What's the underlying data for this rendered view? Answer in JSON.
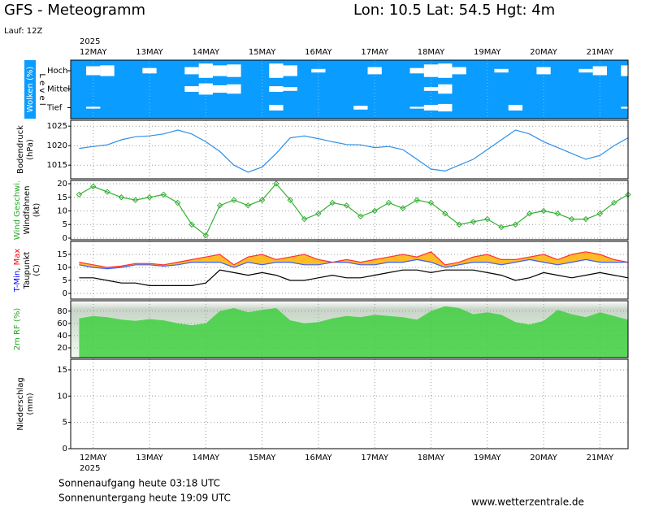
{
  "header": {
    "title": "GFS - Meteogramm",
    "location": "Lon: 10.5 Lat: 54.5 Hgt: 4m",
    "run": "Lauf: 12Z"
  },
  "time_axis": {
    "year": "2025",
    "xlim": [
      11.6,
      21.5
    ],
    "xticks": [
      {
        "value": 12,
        "label": "12MAY"
      },
      {
        "value": 13,
        "label": "13MAY"
      },
      {
        "value": 14,
        "label": "14MAY"
      },
      {
        "value": 15,
        "label": "15MAY"
      },
      {
        "value": 16,
        "label": "16MAY"
      },
      {
        "value": 17,
        "label": "17MAY"
      },
      {
        "value": 18,
        "label": "18MAY"
      },
      {
        "value": 19,
        "label": "19MAY"
      },
      {
        "value": 20,
        "label": "20MAY"
      },
      {
        "value": 21,
        "label": "21MAY"
      }
    ],
    "x": [
      11.75,
      12,
      12.25,
      12.5,
      12.75,
      13,
      13.25,
      13.5,
      13.75,
      14,
      14.25,
      14.5,
      14.75,
      15,
      15.25,
      15.5,
      15.75,
      16,
      16.25,
      16.5,
      16.75,
      17,
      17.25,
      17.5,
      17.75,
      18,
      18.25,
      18.5,
      18.75,
      19,
      19.25,
      19.5,
      19.75,
      20,
      20.25,
      20.5,
      20.75,
      21,
      21.25,
      21.5
    ]
  },
  "chart_data": [
    {
      "type": "cloud",
      "ylabel": [
        [
          {
            "text": "Wolken (%)",
            "color": "#ffffff"
          }
        ]
      ],
      "level_label": "L e v e l",
      "background": "#0a9cff",
      "series": [
        {
          "name": "Hoch",
          "color": "#ffffff",
          "values": [
            0,
            50,
            60,
            0,
            0,
            30,
            0,
            0,
            40,
            80,
            60,
            70,
            0,
            0,
            80,
            60,
            0,
            20,
            0,
            0,
            0,
            40,
            0,
            0,
            30,
            70,
            80,
            40,
            0,
            0,
            20,
            0,
            0,
            40,
            0,
            0,
            20,
            50,
            0,
            60
          ]
        },
        {
          "name": "Mittel",
          "color": "#ffffff",
          "values": [
            0,
            0,
            0,
            0,
            0,
            0,
            0,
            0,
            30,
            60,
            40,
            50,
            0,
            0,
            30,
            20,
            0,
            0,
            0,
            0,
            0,
            0,
            0,
            0,
            0,
            20,
            50,
            0,
            0,
            0,
            0,
            0,
            0,
            0,
            0,
            0,
            0,
            0,
            0,
            0
          ]
        },
        {
          "name": "Tief",
          "color": "#ffffff",
          "values": [
            0,
            10,
            0,
            0,
            0,
            0,
            0,
            0,
            0,
            0,
            0,
            0,
            0,
            0,
            30,
            0,
            0,
            0,
            0,
            0,
            20,
            0,
            0,
            0,
            10,
            30,
            40,
            0,
            0,
            0,
            0,
            30,
            0,
            0,
            0,
            0,
            0,
            0,
            0,
            10
          ]
        }
      ]
    },
    {
      "type": "line",
      "ylabel": [
        [
          {
            "text": "Bodendruck",
            "color": "#000000"
          }
        ],
        [
          {
            "text": "(hPa)",
            "color": "#000000"
          }
        ]
      ],
      "ylim": [
        1011.5,
        1026.5
      ],
      "yticks": [
        1015,
        1020,
        1025
      ],
      "series": [
        {
          "color": "#2f8fe8",
          "values": [
            1019.3,
            1019.8,
            1020.2,
            1021.5,
            1022.3,
            1022.5,
            1023,
            1024,
            1023,
            1021,
            1018.5,
            1015,
            1013.2,
            1014.5,
            1018,
            1022,
            1022.5,
            1021.8,
            1021,
            1020.3,
            1020.2,
            1019.5,
            1019.8,
            1019,
            1016.5,
            1014,
            1013.5,
            1015,
            1016.5,
            1019,
            1021.5,
            1024,
            1023,
            1021,
            1019.5,
            1018,
            1016.5,
            1017.5,
            1020,
            1022
          ]
        }
      ]
    },
    {
      "type": "line",
      "markers": true,
      "ylabel": [
        [
          {
            "text": "Wind Geschwi.",
            "color": "#22aa22"
          }
        ],
        [
          {
            "text": "Windfahnen",
            "color": "#000000"
          }
        ],
        [
          {
            "text": "(kt)",
            "color": "#000000"
          }
        ]
      ],
      "ylim": [
        -0.6,
        21.2
      ],
      "yticks": [
        0,
        5,
        10,
        15,
        20
      ],
      "series": [
        {
          "color": "#33b033",
          "values": [
            16,
            19,
            17,
            15,
            14,
            15,
            16,
            13,
            5,
            1,
            12,
            14,
            12,
            14,
            20,
            14,
            7,
            9,
            13,
            12,
            8,
            10,
            13,
            11,
            14,
            13,
            9,
            5,
            6,
            7,
            4,
            5,
            9,
            10,
            9,
            7,
            7,
            9,
            13,
            16
          ]
        }
      ]
    },
    {
      "type": "temperature",
      "ylabel": [
        [
          {
            "text": "T-Min",
            "color": "#0000ff"
          },
          {
            "text": ", ",
            "color": "#000000"
          },
          {
            "text": "Max",
            "color": "#ff0000"
          }
        ],
        [
          {
            "text": "Taupunkt",
            "color": "#000000"
          }
        ],
        [
          {
            "text": "(C)",
            "color": "#000000"
          }
        ]
      ],
      "ylim": [
        -2.2,
        20
      ],
      "yticks": [
        0,
        5,
        10,
        15
      ],
      "fill": "#ffb000",
      "series": [
        {
          "color": "#3a5cff",
          "values": [
            11,
            10,
            9.5,
            10,
            11,
            11,
            10.5,
            11,
            12,
            12,
            12,
            10,
            12,
            11,
            12,
            12,
            11,
            11,
            12,
            12,
            11,
            11,
            12,
            12,
            13,
            12,
            10,
            11,
            12,
            12,
            11,
            12,
            13,
            12,
            11,
            12,
            13,
            12,
            12,
            12
          ]
        },
        {
          "color": "#ff3030",
          "values": [
            12,
            11,
            10,
            10.5,
            11.5,
            11.5,
            11,
            12,
            13,
            14,
            15,
            11,
            14,
            15,
            13,
            14,
            15,
            13,
            12,
            13,
            12,
            13,
            14,
            15,
            14,
            16,
            11,
            12,
            14,
            15,
            13,
            13,
            14,
            15,
            13,
            15,
            16,
            15,
            13,
            12
          ]
        },
        {
          "color": "#000000",
          "values": [
            6,
            6,
            5,
            4,
            4,
            3,
            3,
            3,
            3,
            4,
            9,
            8,
            7,
            8,
            7,
            5,
            5,
            6,
            7,
            6,
            6,
            7,
            8,
            9,
            9,
            8,
            9,
            9,
            9,
            8,
            7,
            5,
            6,
            8,
            7,
            6,
            7,
            8,
            7,
            6
          ]
        }
      ]
    },
    {
      "type": "area",
      "ylabel": [
        [
          {
            "text": "2m RF (%)",
            "color": "#22aa22"
          }
        ]
      ],
      "ylim": [
        4,
        97
      ],
      "yticks": [
        20,
        40,
        60,
        80
      ],
      "series": [
        {
          "color": "#3fcf3f",
          "values": [
            68,
            72,
            70,
            66,
            64,
            67,
            65,
            60,
            57,
            60,
            80,
            85,
            78,
            82,
            85,
            65,
            60,
            62,
            68,
            72,
            70,
            74,
            72,
            70,
            66,
            80,
            88,
            85,
            75,
            78,
            74,
            62,
            58,
            64,
            82,
            75,
            70,
            78,
            72,
            66
          ]
        }
      ]
    },
    {
      "type": "bar",
      "ylabel": [
        [
          {
            "text": "Niederschlag",
            "color": "#000000"
          }
        ],
        [
          {
            "text": "(mm)",
            "color": "#000000"
          }
        ]
      ],
      "ylim": [
        0,
        17
      ],
      "yticks": [
        0,
        5,
        10,
        15
      ]
    }
  ],
  "footer": {
    "sunrise": "Sonnenaufgang heute 03:18 UTC",
    "sunset": "Sonnenuntergang heute 19:09 UTC",
    "source": "www.wetterzentrale.de"
  }
}
